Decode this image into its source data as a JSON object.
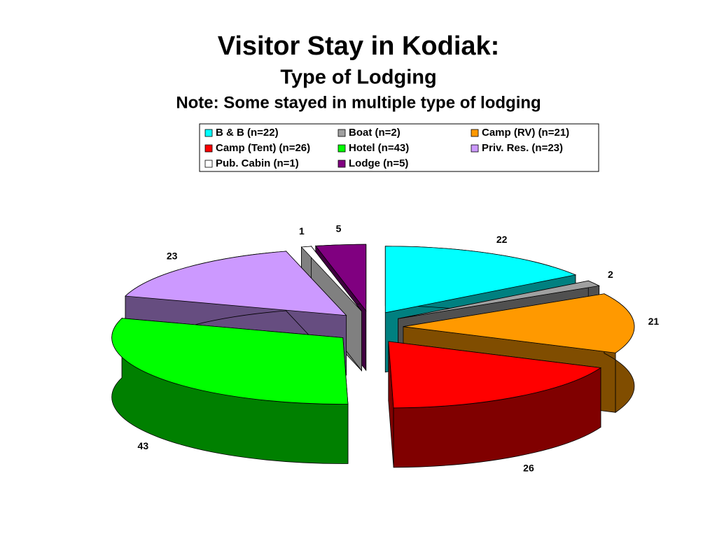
{
  "chart_data": {
    "type": "pie",
    "title": "Visitor Stay in Kodiak:",
    "subtitle": "Type of Lodging",
    "note": "Note: Some stayed in multiple type of lodging",
    "categories": [
      "B & B (n=22)",
      "Boat (n=2)",
      "Camp (RV) (n=21)",
      "Camp (Tent) (n=26)",
      "Hotel (n=43)",
      "Priv. Res. (n=23)",
      "Pub. Cabin (n=1)",
      "Lodge (n=5)"
    ],
    "values": [
      22,
      2,
      21,
      26,
      43,
      23,
      1,
      5
    ],
    "colors": [
      "#00ffff",
      "#a0a0a0",
      "#ff9900",
      "#ff0000",
      "#00ff00",
      "#cc99ff",
      "#ffffff",
      "#800080"
    ]
  }
}
